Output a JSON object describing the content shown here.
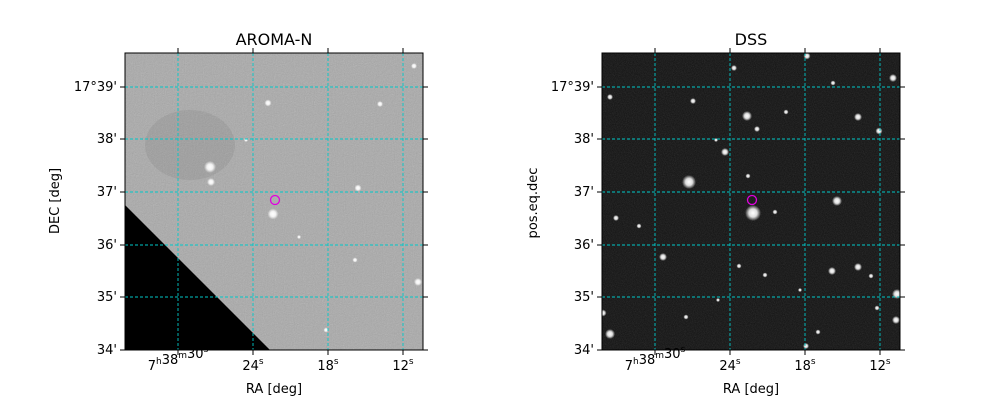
{
  "panels": [
    {
      "title": "AROMA-N",
      "ylabel": "DEC [deg]",
      "xlabel": "RA [deg]"
    },
    {
      "title": "DSS",
      "ylabel": "pos.eq.dec",
      "xlabel": "RA [deg]"
    }
  ],
  "ra_ticks": [
    {
      "h": "7",
      "hsup": "h",
      "m": "38",
      "msup": "m",
      "s": "30",
      "ssup": "s"
    },
    {
      "s": "24",
      "ssup": "s"
    },
    {
      "s": "18",
      "ssup": "s"
    },
    {
      "s": "12",
      "ssup": "s"
    }
  ],
  "dec_ticks": [
    "17°39'",
    "38'",
    "37'",
    "36'",
    "35'",
    "34'"
  ],
  "colors": {
    "grid": "#00c8c8",
    "marker": "#e000e0",
    "aroma_background": "#a8a8a8",
    "dss_background": "#0c0c0c"
  }
}
